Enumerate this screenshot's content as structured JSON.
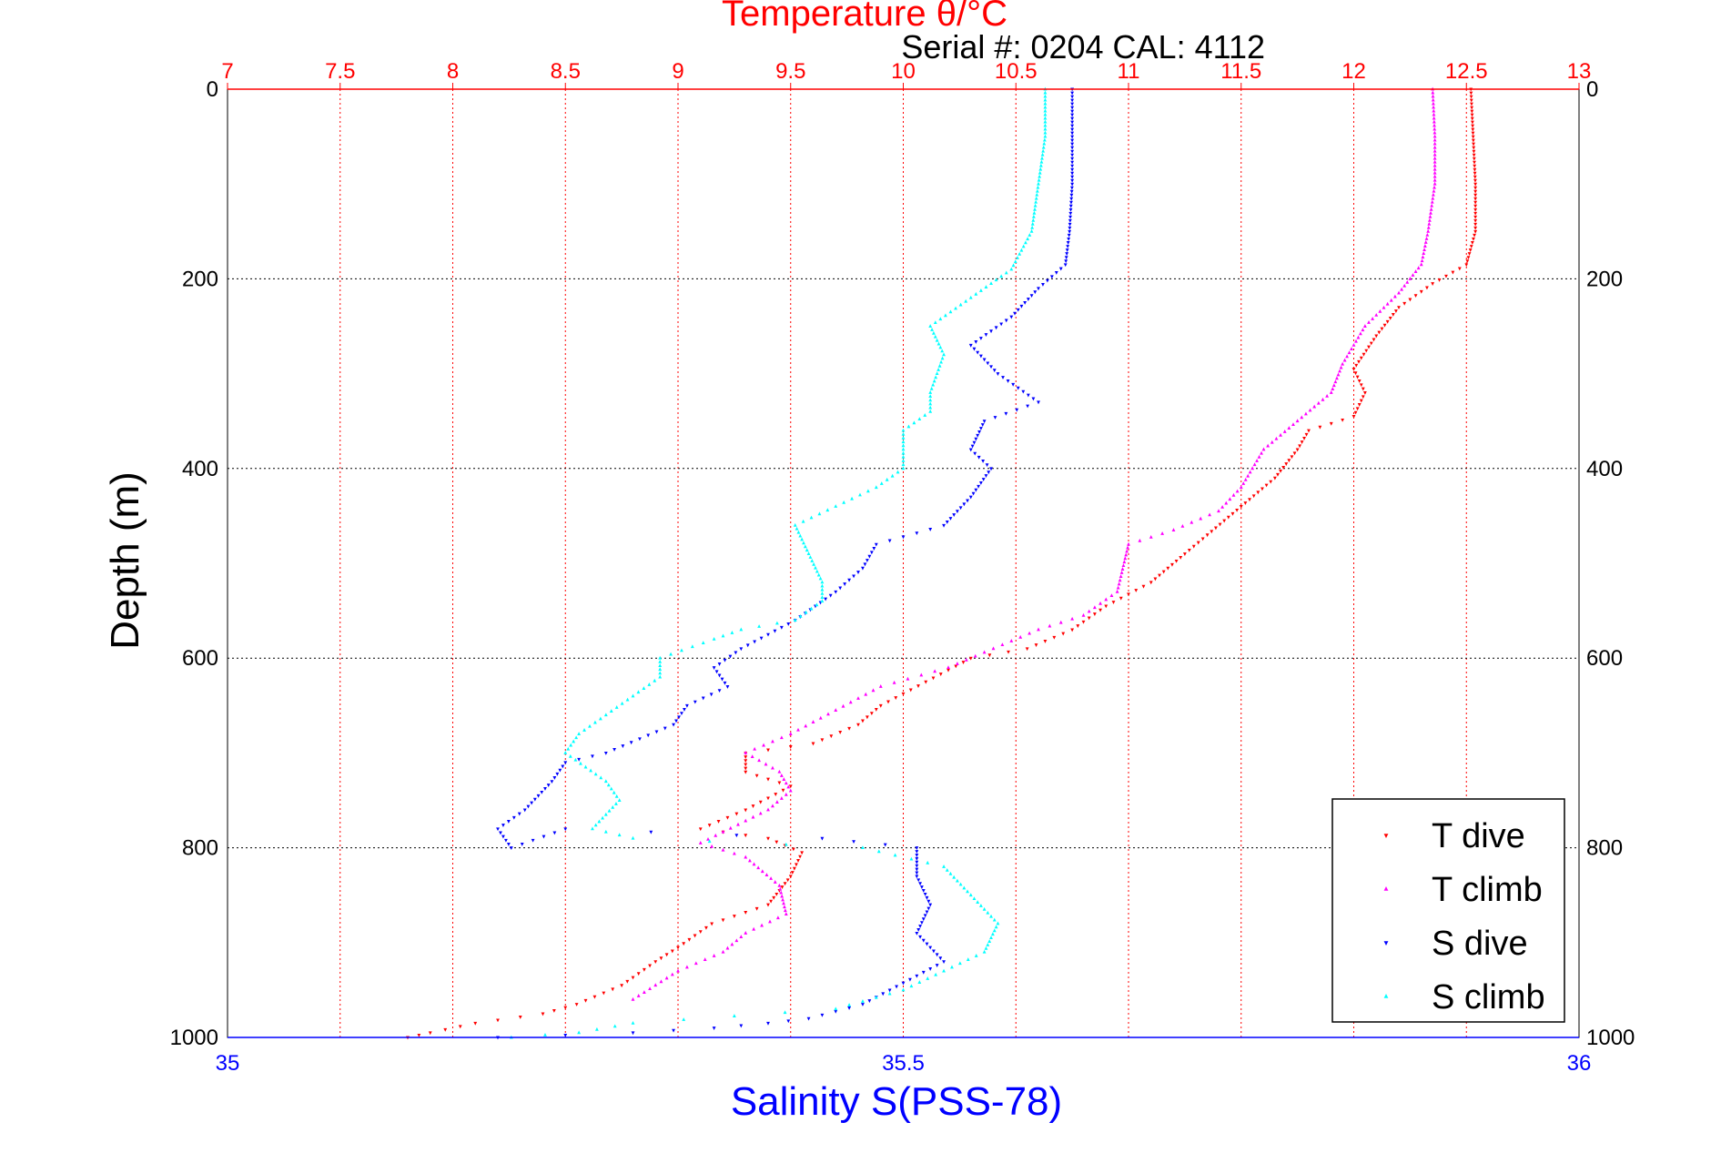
{
  "chart_data": {
    "type": "scatter",
    "title": "Temperature θ/°C",
    "subtitle": "Serial #: 0204  CAL: 4112",
    "top_axis": {
      "label": "Temperature θ/°C",
      "range": [
        7,
        13
      ],
      "ticks": [
        "7",
        "7.5",
        "8",
        "8.5",
        "9",
        "9.5",
        "10",
        "10.5",
        "11",
        "11.5",
        "12",
        "12.5",
        "13"
      ],
      "color": "#ff0000"
    },
    "bottom_axis": {
      "label": "Salinity S(PSS-78)",
      "range": [
        35,
        36
      ],
      "ticks": [
        "35",
        "35.5",
        "36"
      ],
      "color": "#0000ff"
    },
    "y_axis": {
      "label": "Depth (m)",
      "range": [
        0,
        1000
      ],
      "reversed": true,
      "ticks": [
        "0",
        "200",
        "400",
        "600",
        "800",
        "1000"
      ]
    },
    "grid": true,
    "legend_position": "bottom-right",
    "series": [
      {
        "name": "T dive",
        "axis": "temperature",
        "color": "#ff0000",
        "marker": "triangle-down",
        "points": [
          [
            12.52,
            0
          ],
          [
            12.53,
            50
          ],
          [
            12.54,
            100
          ],
          [
            12.54,
            150
          ],
          [
            12.5,
            185
          ],
          [
            12.35,
            205
          ],
          [
            12.2,
            230
          ],
          [
            12.1,
            260
          ],
          [
            12.0,
            295
          ],
          [
            12.05,
            320
          ],
          [
            12.0,
            345
          ],
          [
            11.8,
            360
          ],
          [
            11.75,
            380
          ],
          [
            11.65,
            410
          ],
          [
            11.5,
            440
          ],
          [
            11.35,
            470
          ],
          [
            11.25,
            490
          ],
          [
            11.1,
            520
          ],
          [
            10.9,
            545
          ],
          [
            10.75,
            570
          ],
          [
            10.55,
            590
          ],
          [
            10.3,
            600
          ],
          [
            10.1,
            625
          ],
          [
            9.9,
            650
          ],
          [
            9.8,
            670
          ],
          [
            9.6,
            690
          ],
          [
            9.3,
            700
          ],
          [
            9.3,
            720
          ],
          [
            9.5,
            735
          ],
          [
            9.3,
            760
          ],
          [
            9.1,
            780
          ],
          [
            9.4,
            790
          ],
          [
            9.55,
            805
          ],
          [
            9.5,
            830
          ],
          [
            9.4,
            860
          ],
          [
            9.15,
            880
          ],
          [
            9.0,
            905
          ],
          [
            8.9,
            920
          ],
          [
            8.75,
            945
          ],
          [
            8.55,
            965
          ],
          [
            8.4,
            975
          ],
          [
            8.1,
            985
          ],
          [
            7.9,
            995
          ],
          [
            7.8,
            1000
          ]
        ]
      },
      {
        "name": "T climb",
        "axis": "temperature",
        "color": "#ff00ff",
        "marker": "triangle-up",
        "points": [
          [
            12.35,
            0
          ],
          [
            12.36,
            50
          ],
          [
            12.36,
            100
          ],
          [
            12.33,
            150
          ],
          [
            12.3,
            185
          ],
          [
            12.2,
            215
          ],
          [
            12.05,
            250
          ],
          [
            11.95,
            290
          ],
          [
            11.9,
            320
          ],
          [
            11.75,
            350
          ],
          [
            11.6,
            380
          ],
          [
            11.5,
            420
          ],
          [
            11.4,
            445
          ],
          [
            11.2,
            465
          ],
          [
            11.0,
            480
          ],
          [
            10.97,
            510
          ],
          [
            10.95,
            530
          ],
          [
            10.8,
            555
          ],
          [
            10.6,
            570
          ],
          [
            10.4,
            590
          ],
          [
            10.2,
            610
          ],
          [
            9.9,
            630
          ],
          [
            9.7,
            655
          ],
          [
            9.5,
            680
          ],
          [
            9.3,
            700
          ],
          [
            9.45,
            720
          ],
          [
            9.5,
            740
          ],
          [
            9.4,
            760
          ],
          [
            9.1,
            795
          ],
          [
            9.3,
            810
          ],
          [
            9.45,
            840
          ],
          [
            9.48,
            870
          ],
          [
            9.3,
            890
          ],
          [
            9.2,
            910
          ],
          [
            9.0,
            930
          ],
          [
            8.8,
            960
          ]
        ]
      },
      {
        "name": "S dive",
        "axis": "salinity",
        "color": "#0000ff",
        "marker": "triangle-down",
        "points": [
          [
            35.625,
            0
          ],
          [
            35.625,
            50
          ],
          [
            35.625,
            100
          ],
          [
            35.623,
            150
          ],
          [
            35.62,
            185
          ],
          [
            35.6,
            210
          ],
          [
            35.58,
            240
          ],
          [
            35.55,
            270
          ],
          [
            35.57,
            300
          ],
          [
            35.6,
            330
          ],
          [
            35.56,
            350
          ],
          [
            35.55,
            380
          ],
          [
            35.565,
            400
          ],
          [
            35.55,
            430
          ],
          [
            35.53,
            460
          ],
          [
            35.48,
            480
          ],
          [
            35.47,
            505
          ],
          [
            35.45,
            530
          ],
          [
            35.42,
            560
          ],
          [
            35.38,
            590
          ],
          [
            35.36,
            610
          ],
          [
            35.37,
            630
          ],
          [
            35.34,
            650
          ],
          [
            35.33,
            670
          ],
          [
            35.28,
            700
          ],
          [
            35.25,
            710
          ],
          [
            35.24,
            730
          ],
          [
            35.22,
            760
          ],
          [
            35.2,
            780
          ],
          [
            35.21,
            800
          ],
          [
            35.25,
            780
          ],
          [
            35.44,
            790
          ],
          [
            35.51,
            800
          ],
          [
            35.51,
            830
          ],
          [
            35.52,
            860
          ],
          [
            35.51,
            890
          ],
          [
            35.53,
            920
          ],
          [
            35.49,
            950
          ],
          [
            35.47,
            965
          ],
          [
            35.43,
            980
          ],
          [
            35.4,
            985
          ],
          [
            35.36,
            990
          ],
          [
            35.3,
            995
          ],
          [
            35.2,
            1000
          ]
        ]
      },
      {
        "name": "S climb",
        "axis": "salinity",
        "color": "#00ffff",
        "marker": "triangle-up",
        "points": [
          [
            35.605,
            0
          ],
          [
            35.605,
            50
          ],
          [
            35.6,
            100
          ],
          [
            35.595,
            150
          ],
          [
            35.58,
            190
          ],
          [
            35.55,
            220
          ],
          [
            35.52,
            250
          ],
          [
            35.53,
            280
          ],
          [
            35.52,
            320
          ],
          [
            35.52,
            340
          ],
          [
            35.5,
            360
          ],
          [
            35.5,
            400
          ],
          [
            35.48,
            420
          ],
          [
            35.45,
            440
          ],
          [
            35.42,
            460
          ],
          [
            35.43,
            490
          ],
          [
            35.44,
            520
          ],
          [
            35.44,
            540
          ],
          [
            35.42,
            560
          ],
          [
            35.38,
            570
          ],
          [
            35.36,
            580
          ],
          [
            35.32,
            600
          ],
          [
            35.32,
            620
          ],
          [
            35.3,
            640
          ],
          [
            35.28,
            660
          ],
          [
            35.26,
            680
          ],
          [
            35.25,
            700
          ],
          [
            35.28,
            730
          ],
          [
            35.29,
            750
          ],
          [
            35.27,
            780
          ],
          [
            35.3,
            790
          ],
          [
            35.47,
            800
          ],
          [
            35.53,
            820
          ],
          [
            35.55,
            850
          ],
          [
            35.57,
            880
          ],
          [
            35.56,
            910
          ],
          [
            35.53,
            930
          ],
          [
            35.5,
            950
          ],
          [
            35.45,
            970
          ],
          [
            35.3,
            985
          ],
          [
            35.26,
            995
          ],
          [
            35.21,
            1000
          ]
        ]
      }
    ]
  },
  "legend": {
    "items": [
      {
        "label": "T dive",
        "color": "#ff0000",
        "marker": "triangle-down"
      },
      {
        "label": "T climb",
        "color": "#ff00ff",
        "marker": "triangle-up"
      },
      {
        "label": "S dive",
        "color": "#0000ff",
        "marker": "triangle-down"
      },
      {
        "label": "S climb",
        "color": "#00ffff",
        "marker": "triangle-up"
      }
    ]
  }
}
